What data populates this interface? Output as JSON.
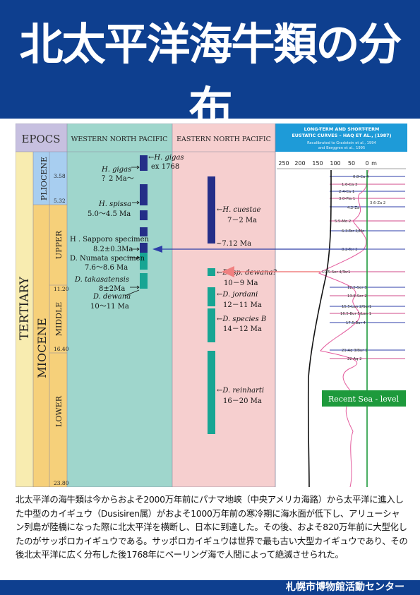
{
  "title": "北太平洋海牛類の分布",
  "columns": {
    "epocs": "EPOCS",
    "west": "WESTERN NORTH PACIFIC",
    "east": "EASTERN NORTH PACIFIC"
  },
  "periods": {
    "tertiary": "TERTIARY",
    "miocene": "MIOCENE",
    "pliocene": "PLIOCENE",
    "upper": "UPPER",
    "middle": "MIDDLE",
    "lower": "LOWER"
  },
  "ages": [
    "3.58",
    "5.32",
    "11.20",
    "16.40",
    "23.80"
  ],
  "west_labels": {
    "gigas_a": "←H. gigas",
    "gigas_b": "ex 1768",
    "gigas2_a": "H. gigas",
    "gigas2_b": "？2 Ma～",
    "spissa_a": "H. spissa",
    "spissa_b": "5.0～4.5 Ma",
    "sapporo_a": "H . Sapporo specimen",
    "sapporo_b": "8.2±0.3Ma",
    "numata_a": "D. Numata specimen",
    "numata_b": "7.6～8.6 Ma",
    "takasatensis_a": "D. takasatensis",
    "takasatensis_b": "8±2Ma",
    "dewana_a": "D. dewana",
    "dewana_b": "10～11 Ma"
  },
  "east_labels": {
    "cuestae_a": "←H. cuestae",
    "cuestae_b": "7－2 Ma",
    "cuestae_c": "~7.12 Ma",
    "spdewana_a": "←D. sp. dewana?",
    "spdewana_b": "10－9 Ma",
    "jordani_a": "←D. jordani",
    "jordani_b": "12－11 Ma",
    "speciesb_a": "←D. species B",
    "speciesb_b": "14－12 Ma",
    "reinharti_a": "←D. reinharti",
    "reinharti_b": "16－20 Ma"
  },
  "eustatic": {
    "title_1": "LONG-TERM AND SHORT-TERM",
    "title_2": "EUSTATIC CURVES – HAQ ET AL., (1987)",
    "sub_1": "Recalibrated to Gradstein et al., 1994",
    "sub_2": "and Berggren et al., 1995",
    "axis_ticks": [
      "250",
      "200",
      "150",
      "100",
      "50",
      "0",
      "m"
    ],
    "sequences": [
      "0.8-Ca 4",
      "1.6-Ca 3",
      "2.4-Ca 1",
      "3.0-Pia 1",
      "3.6-Za 2",
      "4.2-Za",
      "5.5-Me 2",
      "6.3-Tor 3/Me",
      "8.2-Tor 2",
      "10.5-Ser 4/Tor1",
      "12.5-Ser 3",
      "13.8-Ser 2",
      "15.5-Lan 2/Ser1",
      "16.5-Bur 5/Lan 1",
      "17.5-Bur 4",
      "21-Aq 3/Bur 1",
      "22-Aq 2"
    ],
    "recent_sea_level": "Recent Sea - level"
  },
  "description": "北太平洋の海牛類は今からおよそ2000万年前にパナマ地峡（中央アメリカ海路）から太平洋に進入した中型のカイギュウ（Dusisiren属）がおよそ1000万年前の寒冷期に海水面が低下し、アリューシャン列島が陸橋になった際に北太平洋を横断し、日本に到達した。その後、およそ820万年前に大型化したのがサッポロカイギュウである。サッポロカイギュウは世界で最も古い大型カイギュウであり、その後北太平洋に広く分布した後1768年にベーリング海で人間によって絶滅させられた。",
  "footer": "札幌市博物館活動センター",
  "colors": {
    "header_bg": "#0e3f8f",
    "west_bg": "#9fd6cc",
    "east_bg": "#f6cfcf",
    "epocs_bg": "#c7c0e0",
    "tertiary_bg": "#f8ecb0",
    "miocene_bg": "#f6d07a",
    "pliocene_bg": "#a8cef0",
    "bar_navy": "#242e88",
    "bar_teal": "#17a593",
    "eustatic_title_bg": "#1e9bd8",
    "recent_sea_level_bg": "#1e9a3c"
  }
}
